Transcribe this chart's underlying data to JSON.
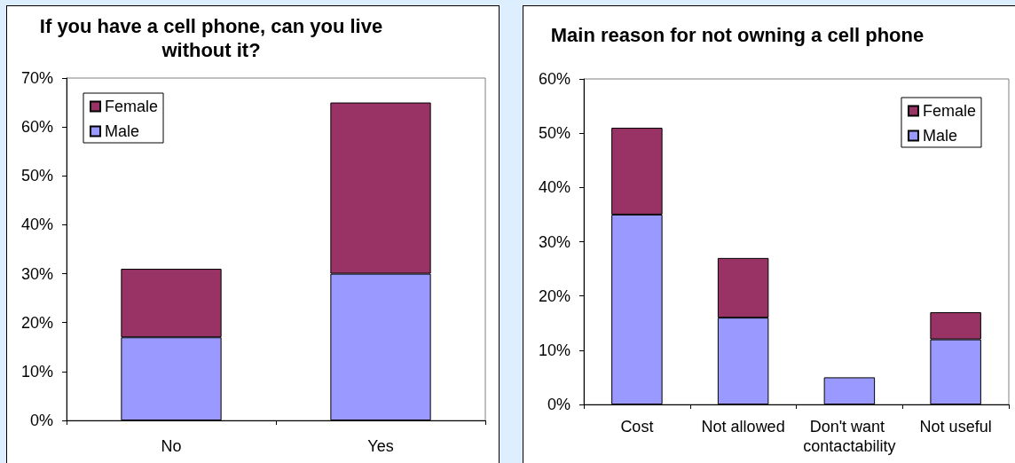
{
  "chart_data": [
    {
      "type": "bar",
      "title": "If you have a cell phone, can you live without it?",
      "categories": [
        "No",
        "Yes"
      ],
      "stacked": true,
      "series": [
        {
          "name": "Male",
          "color": "#9999ff",
          "values": [
            17,
            30
          ]
        },
        {
          "name": "Female",
          "color": "#993366",
          "values": [
            14,
            35
          ]
        }
      ],
      "ylim": [
        0,
        70
      ],
      "yticks": [
        {
          "value": 0,
          "label": "0%"
        },
        {
          "value": 10,
          "label": "10%"
        },
        {
          "value": 20,
          "label": "20%"
        },
        {
          "value": 30,
          "label": "30%"
        },
        {
          "value": 40,
          "label": "40%"
        },
        {
          "value": 50,
          "label": "50%"
        },
        {
          "value": 60,
          "label": "60%"
        },
        {
          "value": 70,
          "label": "70%"
        }
      ],
      "grid": false,
      "legend": "top left"
    },
    {
      "type": "bar",
      "title": "Main reason for not owning a cell phone",
      "categories": [
        "Cost",
        "Not allowed",
        "Don't want contactability",
        "Not useful"
      ],
      "stacked": true,
      "series": [
        {
          "name": "Male",
          "color": "#9999ff",
          "values": [
            35,
            16,
            5,
            12
          ]
        },
        {
          "name": "Female",
          "color": "#993366",
          "values": [
            16,
            11,
            null,
            5
          ]
        }
      ],
      "ylim": [
        0,
        60
      ],
      "yticks": [
        {
          "value": 0,
          "label": "0%"
        },
        {
          "value": 10,
          "label": "10%"
        },
        {
          "value": 20,
          "label": "20%"
        },
        {
          "value": 30,
          "label": "30%"
        },
        {
          "value": 40,
          "label": "40%"
        },
        {
          "value": 50,
          "label": "50%"
        },
        {
          "value": 60,
          "label": "60%"
        }
      ],
      "grid": false,
      "legend": "top right"
    }
  ]
}
